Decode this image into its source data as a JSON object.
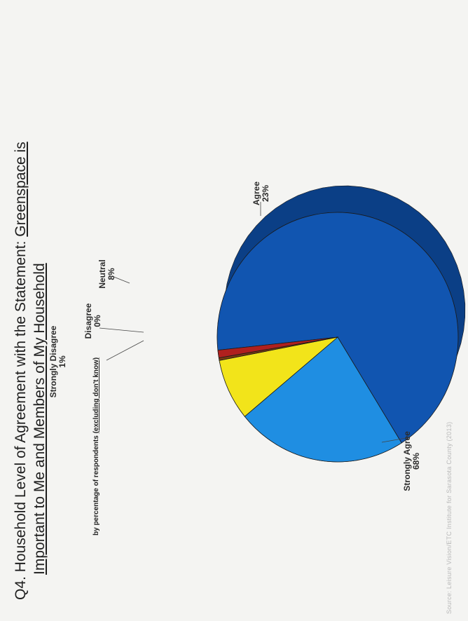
{
  "title": {
    "prefix": "Q4.  Household Level of Agreement with the Statement: ",
    "quoted_line1": "Greenspace is",
    "quoted_line2": "Important to Me and Members of My Household"
  },
  "subtitle": {
    "prefix": "by percentage of respondents ",
    "note": "(excluding don't know)"
  },
  "source": "Source: Leisure Vision/ETC Institute for Sarasota County (2013)",
  "colors": {
    "strongly_agree": "#1155b0",
    "agree": "#1f8ee2",
    "neutral": "#f2e41a",
    "disagree": "#7a3a12",
    "strongly_disagree": "#b0201e",
    "strongly_agree_side": "#0b3f86",
    "agree_side": "#135fa6",
    "neutral_side": "#9c8a2c"
  },
  "chart_data": {
    "type": "pie",
    "title": "",
    "slices": [
      {
        "label": "Strongly Agree",
        "value": 68,
        "display": "68%",
        "color_key": "strongly_agree"
      },
      {
        "label": "Agree",
        "value": 23,
        "display": "23%",
        "color_key": "agree"
      },
      {
        "label": "Neutral",
        "value": 8,
        "display": "8%",
        "color_key": "neutral"
      },
      {
        "label": "Disagree",
        "value": 0,
        "display": "0%",
        "color_key": "disagree"
      },
      {
        "label": "Strongly Disagree",
        "value": 1,
        "display": "1%",
        "color_key": "strongly_disagree"
      }
    ],
    "style": "3d"
  }
}
